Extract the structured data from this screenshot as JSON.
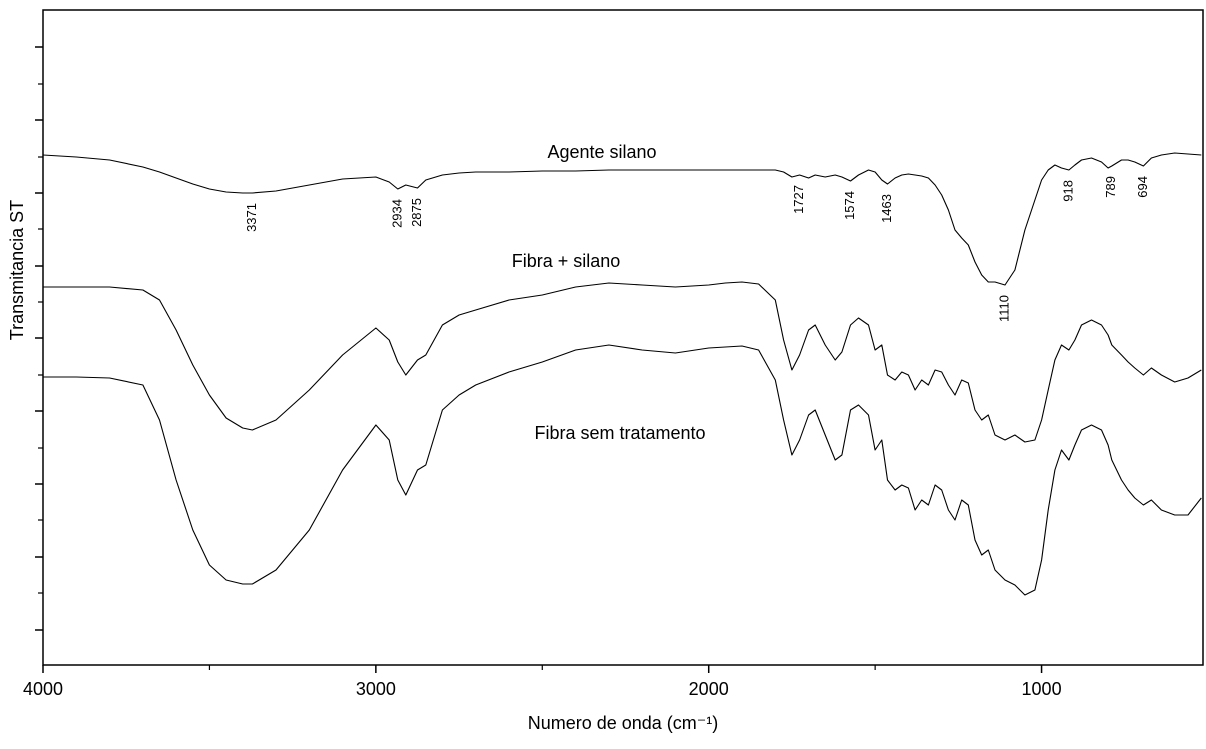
{
  "chart_data": {
    "type": "line",
    "xlabel": "Numero de onda (cm⁻¹)",
    "ylabel": "Transmitancia ST",
    "xlim": [
      4000,
      515
    ],
    "xticks": [
      4000,
      3000,
      2000,
      1000
    ],
    "xminorticks": [
      3500,
      2500,
      1500
    ],
    "ylim": [
      0,
      655
    ],
    "yticks": [
      35,
      108,
      181,
      254,
      327,
      399,
      472,
      545,
      618
    ],
    "yminorticks": [
      72,
      145,
      217,
      290,
      363,
      436,
      508,
      581
    ],
    "x": [
      4000,
      3900,
      3800,
      3700,
      3650,
      3600,
      3550,
      3500,
      3450,
      3400,
      3371,
      3300,
      3200,
      3100,
      3000,
      2960,
      2934,
      2910,
      2875,
      2850,
      2800,
      2750,
      2700,
      2600,
      2500,
      2400,
      2300,
      2200,
      2100,
      2000,
      1950,
      1900,
      1850,
      1800,
      1775,
      1750,
      1727,
      1700,
      1680,
      1650,
      1620,
      1600,
      1574,
      1550,
      1520,
      1500,
      1480,
      1463,
      1440,
      1420,
      1400,
      1380,
      1360,
      1340,
      1320,
      1300,
      1280,
      1260,
      1240,
      1220,
      1200,
      1180,
      1160,
      1140,
      1110,
      1080,
      1050,
      1020,
      1000,
      980,
      960,
      940,
      918,
      900,
      880,
      850,
      820,
      800,
      789,
      760,
      740,
      720,
      694,
      670,
      640,
      600,
      560,
      520
    ],
    "series": [
      {
        "name": "Agente silano",
        "color": "#000000",
        "values": [
          510,
          508,
          505,
          498,
          493,
          487,
          481,
          476,
          473,
          472,
          472,
          474,
          480,
          486,
          488,
          483,
          476,
          480,
          477,
          485,
          490,
          492,
          493,
          493,
          494,
          494,
          495,
          495,
          495,
          495,
          495,
          495,
          495,
          495,
          493,
          488,
          490,
          487,
          490,
          488,
          490,
          488,
          484,
          490,
          495,
          493,
          485,
          481,
          487,
          490,
          491,
          490,
          489,
          487,
          480,
          470,
          455,
          435,
          427,
          420,
          403,
          390,
          383,
          383,
          380,
          395,
          435,
          465,
          485,
          495,
          500,
          497,
          495,
          500,
          505,
          507,
          503,
          497,
          499,
          505,
          505,
          503,
          499,
          507,
          510,
          512,
          511,
          510
        ]
      },
      {
        "name": "Fibra + silano",
        "color": "#000000",
        "values": [
          378,
          378,
          378,
          375,
          365,
          335,
          300,
          270,
          247,
          237,
          235,
          245,
          275,
          310,
          337,
          325,
          303,
          290,
          305,
          310,
          340,
          350,
          355,
          365,
          370,
          378,
          382,
          380,
          378,
          380,
          382,
          383,
          381,
          365,
          325,
          295,
          310,
          335,
          340,
          320,
          305,
          313,
          340,
          347,
          340,
          315,
          320,
          290,
          285,
          293,
          290,
          275,
          285,
          280,
          295,
          293,
          280,
          270,
          285,
          282,
          255,
          245,
          250,
          230,
          225,
          230,
          223,
          225,
          245,
          275,
          305,
          320,
          315,
          325,
          340,
          345,
          340,
          330,
          320,
          310,
          303,
          297,
          290,
          297,
          290,
          283,
          287,
          295
        ]
      },
      {
        "name": "Fibra sem tratamento",
        "color": "#000000",
        "values": [
          288,
          288,
          287,
          280,
          245,
          185,
          135,
          100,
          85,
          81,
          81,
          95,
          135,
          195,
          240,
          225,
          185,
          170,
          195,
          200,
          255,
          270,
          280,
          293,
          303,
          315,
          320,
          315,
          312,
          317,
          318,
          319,
          315,
          285,
          245,
          210,
          225,
          250,
          255,
          230,
          205,
          210,
          255,
          260,
          250,
          215,
          225,
          185,
          175,
          180,
          177,
          155,
          165,
          160,
          180,
          175,
          155,
          145,
          165,
          160,
          125,
          110,
          115,
          95,
          85,
          80,
          70,
          75,
          105,
          155,
          195,
          215,
          205,
          220,
          235,
          240,
          235,
          220,
          205,
          185,
          175,
          167,
          160,
          165,
          155,
          150,
          150,
          167
        ]
      }
    ],
    "annotations": [
      {
        "text": "3371",
        "x": 3371
      },
      {
        "text": "2934",
        "x": 2934
      },
      {
        "text": "2875",
        "x": 2875
      },
      {
        "text": "1727",
        "x": 1727
      },
      {
        "text": "1574",
        "x": 1574
      },
      {
        "text": "1463",
        "x": 1463
      },
      {
        "text": "1110",
        "x": 1110
      },
      {
        "text": "918",
        "x": 918
      },
      {
        "text": "789",
        "x": 789
      },
      {
        "text": "694",
        "x": 694
      }
    ]
  }
}
